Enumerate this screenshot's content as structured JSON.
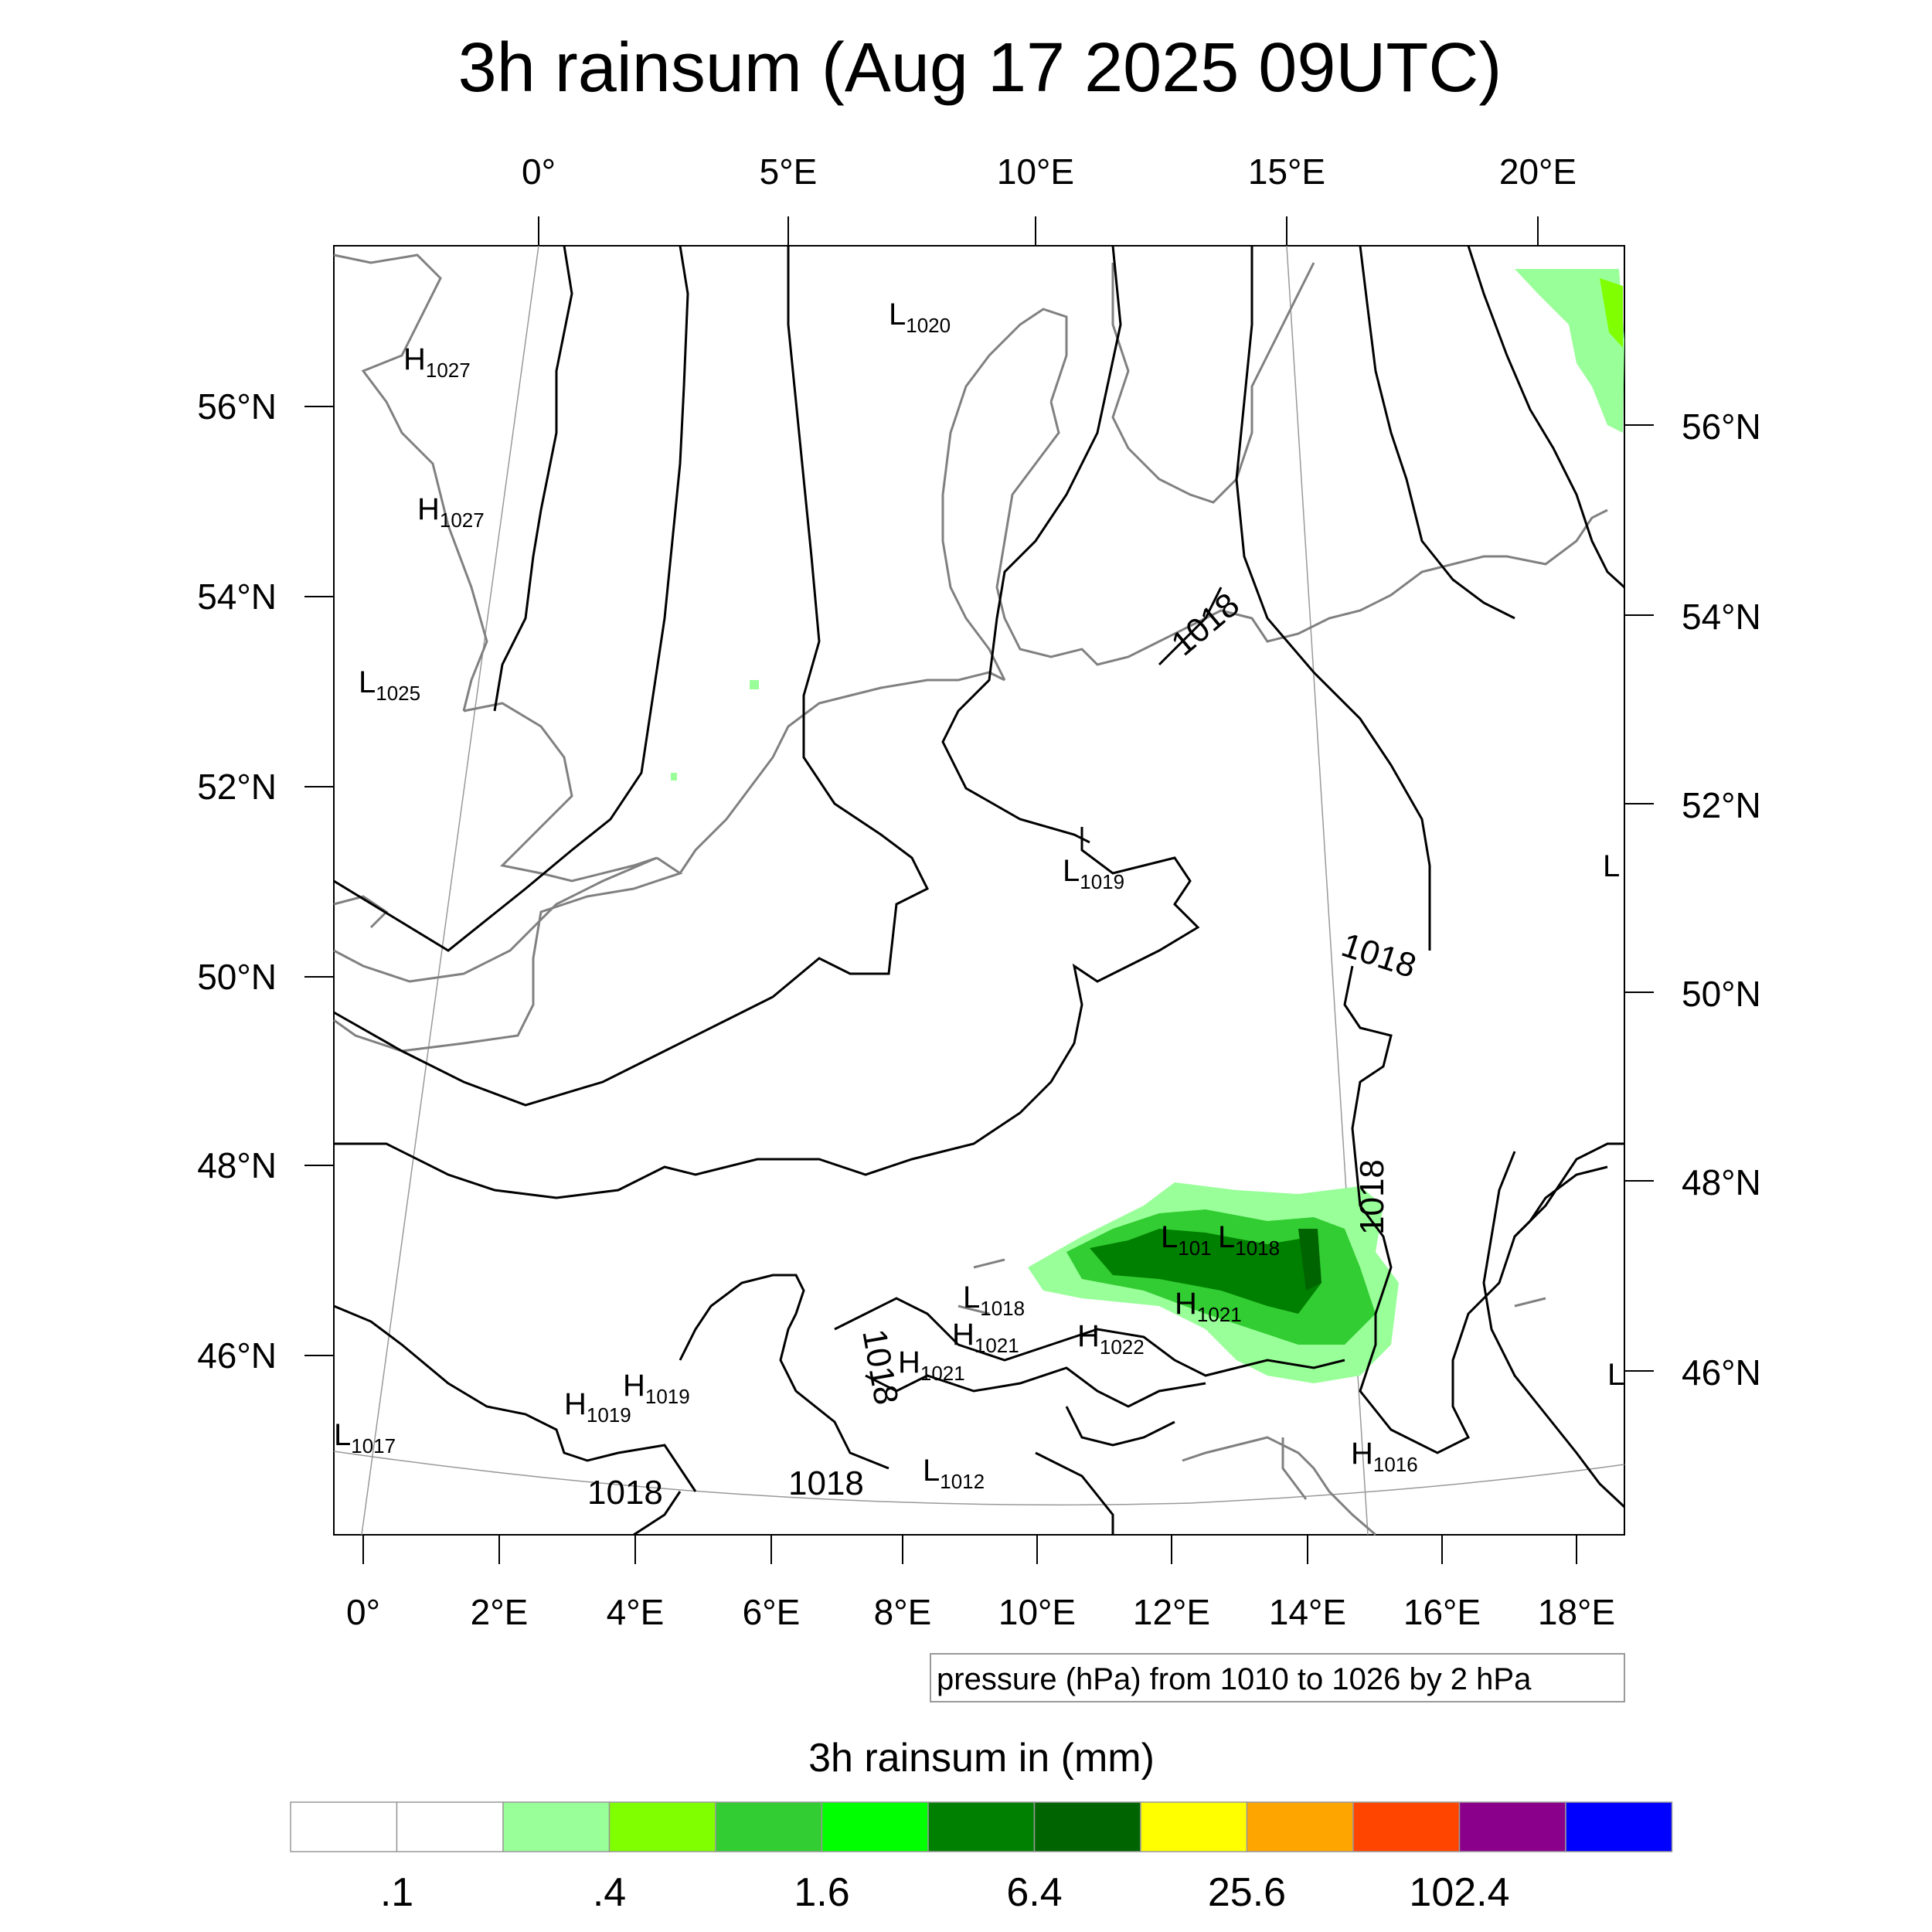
{
  "map": {
    "title": "3h rainsum (Aug 17 2025 09UTC)",
    "top_lon_labels": [
      "0°",
      "5°E",
      "10°E",
      "15°E",
      "20°E"
    ],
    "bottom_lon_labels": [
      "0°",
      "2°E",
      "4°E",
      "6°E",
      "8°E",
      "10°E",
      "12°E",
      "14°E",
      "16°E",
      "18°E"
    ],
    "left_lat_labels": [
      "56°N",
      "54°N",
      "52°N",
      "50°N",
      "48°N",
      "46°N"
    ],
    "right_lat_labels": [
      "56°N",
      "54°N",
      "52°N",
      "50°N",
      "48°N",
      "46°N"
    ],
    "pressure_note": "pressure (hPa) from 1010 to 1026 by 2 hPa"
  },
  "pressure_centers": [
    {
      "kind": "H",
      "value": "1027"
    },
    {
      "kind": "H",
      "value": "1027"
    },
    {
      "kind": "L",
      "value": "1025"
    },
    {
      "kind": "L",
      "value": "1020"
    },
    {
      "kind": "L",
      "value": "1019"
    },
    {
      "kind": "L",
      "value": "101"
    },
    {
      "kind": "L",
      "value": "1018"
    },
    {
      "kind": "L",
      "value": "1018"
    },
    {
      "kind": "H",
      "value": "1021"
    },
    {
      "kind": "H",
      "value": "1021"
    },
    {
      "kind": "H",
      "value": "1022"
    },
    {
      "kind": "H",
      "value": "1021"
    },
    {
      "kind": "H",
      "value": "1019"
    },
    {
      "kind": "H",
      "value": "1019"
    },
    {
      "kind": "L",
      "value": "1017"
    },
    {
      "kind": "L",
      "value": "1012"
    },
    {
      "kind": "H",
      "value": "1016"
    },
    {
      "kind": "L",
      "value": ""
    },
    {
      "kind": "L",
      "value": ""
    }
  ],
  "contour_labels": [
    "1018",
    "1018",
    "1018",
    "1018",
    "1018",
    "1018"
  ],
  "colorbar": {
    "title": "3h rainsum in (mm)",
    "colors": [
      "#ffffff",
      "#ffffff",
      "#99ff99",
      "#80ff00",
      "#32cd32",
      "#00ff00",
      "#008000",
      "#006400",
      "#ffff00",
      "#ffa500",
      "#ff4500",
      "#8b008b",
      "#0000ff"
    ],
    "tick_labels": [
      ".1",
      ".4",
      "1.6",
      "6.4",
      "25.6",
      "102.4"
    ]
  },
  "colors": {
    "coast": "#808080",
    "contour": "#000000",
    "grid": "#999999"
  }
}
